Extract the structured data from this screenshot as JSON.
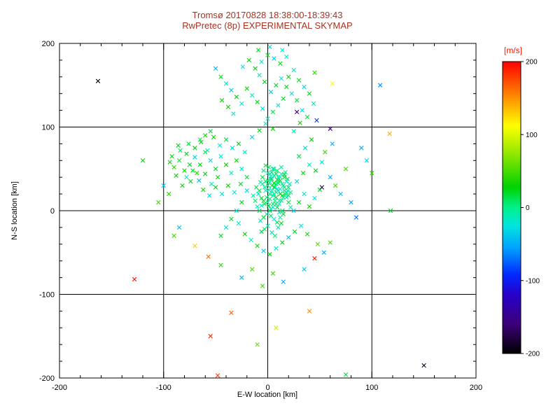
{
  "chart_data": {
    "type": "scatter",
    "title": "Tromsø 20170828 18:38:00-18:39:43",
    "subtitle": "RwPretec (8p) EXPERIMENTAL SKYMAP",
    "title_color": "#a63320",
    "xlabel": "E-W location [km]",
    "ylabel": "N-S location [km]",
    "axis_color": "#000000",
    "xlim": [
      -200,
      200
    ],
    "ylim": [
      -200,
      200
    ],
    "xticks": [
      -200,
      -100,
      0,
      100,
      200
    ],
    "yticks": [
      -200,
      -100,
      0,
      100,
      200
    ],
    "minor_tick_step": 20,
    "grid": true,
    "gridlines_x": [
      -100,
      0,
      100
    ],
    "gridlines_y": [
      -100,
      0,
      100
    ],
    "marker": "x",
    "colorbar": {
      "label": "[m/s]",
      "label_color": "#ff1400",
      "min": -200,
      "max": 200,
      "ticks": [
        200,
        100,
        0,
        -100,
        -200
      ],
      "stops": [
        [
          0.0,
          "#000000"
        ],
        [
          0.1,
          "#3c0078"
        ],
        [
          0.2,
          "#2800c8"
        ],
        [
          0.27,
          "#0028ff"
        ],
        [
          0.36,
          "#00a0ff"
        ],
        [
          0.44,
          "#00e6dc"
        ],
        [
          0.5,
          "#00f08c"
        ],
        [
          0.57,
          "#00d200"
        ],
        [
          0.68,
          "#8ce600"
        ],
        [
          0.78,
          "#ffff00"
        ],
        [
          0.87,
          "#ff9600"
        ],
        [
          1.0,
          "#ff0000"
        ]
      ]
    },
    "points": [
      [
        0,
        10,
        -8
      ],
      [
        2,
        14,
        5
      ],
      [
        -3,
        8,
        12
      ],
      [
        5,
        18,
        -12
      ],
      [
        8,
        22,
        3
      ],
      [
        -6,
        15,
        20
      ],
      [
        1,
        25,
        -18
      ],
      [
        4,
        30,
        8
      ],
      [
        -2,
        35,
        15
      ],
      [
        7,
        28,
        -5
      ],
      [
        10,
        33,
        10
      ],
      [
        12,
        26,
        -22
      ],
      [
        15,
        30,
        5
      ],
      [
        -8,
        24,
        18
      ],
      [
        -5,
        32,
        -10
      ],
      [
        3,
        38,
        12
      ],
      [
        6,
        42,
        -15
      ],
      [
        9,
        37,
        20
      ],
      [
        0,
        45,
        -8
      ],
      [
        -4,
        48,
        5
      ],
      [
        13,
        44,
        -12
      ],
      [
        16,
        40,
        15
      ],
      [
        18,
        35,
        -20
      ],
      [
        20,
        28,
        8
      ],
      [
        22,
        22,
        -5
      ],
      [
        14,
        18,
        25
      ],
      [
        11,
        12,
        -15
      ],
      [
        8,
        8,
        10
      ],
      [
        5,
        4,
        -25
      ],
      [
        2,
        0,
        15
      ],
      [
        -1,
        -4,
        -10
      ],
      [
        -4,
        -8,
        20
      ],
      [
        -7,
        -12,
        -15
      ],
      [
        3,
        -6,
        8
      ],
      [
        6,
        -10,
        -20
      ],
      [
        9,
        -14,
        12
      ],
      [
        12,
        -8,
        -5
      ],
      [
        15,
        -4,
        18
      ],
      [
        0,
        -18,
        -12
      ],
      [
        -3,
        -22,
        10
      ],
      [
        4,
        -26,
        -18
      ],
      [
        7,
        -30,
        5
      ],
      [
        -6,
        -25,
        15
      ],
      [
        10,
        -20,
        -8
      ],
      [
        13,
        -15,
        22
      ],
      [
        -10,
        5,
        -14
      ],
      [
        -12,
        12,
        8
      ],
      [
        -9,
        20,
        -20
      ],
      [
        -11,
        28,
        12
      ],
      [
        -14,
        18,
        -6
      ],
      [
        1,
        52,
        10
      ],
      [
        5,
        50,
        -14
      ],
      [
        9,
        48,
        6
      ],
      [
        13,
        52,
        -9
      ],
      [
        -2,
        54,
        14
      ],
      [
        17,
        46,
        -4
      ],
      [
        19,
        38,
        11
      ],
      [
        21,
        32,
        -16
      ],
      [
        16,
        24,
        7
      ],
      [
        18,
        16,
        -11
      ],
      [
        20,
        10,
        14
      ],
      [
        22,
        4,
        -7
      ],
      [
        14,
        0,
        9
      ],
      [
        11,
        -2,
        -13
      ],
      [
        2,
        20,
        4
      ],
      [
        4,
        24,
        -9
      ],
      [
        6,
        28,
        14
      ],
      [
        8,
        32,
        -4
      ],
      [
        10,
        36,
        9
      ],
      [
        12,
        40,
        -14
      ],
      [
        -1,
        16,
        6
      ],
      [
        -3,
        28,
        -11
      ],
      [
        -5,
        40,
        16
      ],
      [
        -7,
        34,
        -6
      ],
      [
        0,
        30,
        11
      ],
      [
        2,
        34,
        -16
      ],
      [
        4,
        38,
        6
      ],
      [
        6,
        20,
        -2
      ],
      [
        8,
        16,
        16
      ],
      [
        10,
        24,
        -12
      ],
      [
        1,
        6,
        19
      ],
      [
        3,
        2,
        -17
      ],
      [
        5,
        8,
        7
      ],
      [
        7,
        12,
        -3
      ],
      [
        9,
        4,
        13
      ],
      [
        11,
        8,
        -19
      ],
      [
        13,
        12,
        3
      ],
      [
        15,
        16,
        -8
      ],
      [
        17,
        20,
        13
      ],
      [
        19,
        24,
        -3
      ],
      [
        -8,
        0,
        8
      ],
      [
        -6,
        6,
        -13
      ],
      [
        -4,
        12,
        18
      ],
      [
        -2,
        24,
        -8
      ],
      [
        0,
        36,
        3
      ],
      [
        2,
        44,
        -18
      ],
      [
        4,
        46,
        8
      ],
      [
        6,
        50,
        -3
      ],
      [
        8,
        44,
        13
      ],
      [
        10,
        40,
        -8
      ],
      [
        12,
        36,
        18
      ],
      [
        14,
        32,
        -13
      ],
      [
        16,
        28,
        3
      ],
      [
        18,
        22,
        -18
      ],
      [
        20,
        18,
        8
      ],
      [
        12,
        20,
        24
      ],
      [
        9,
        26,
        -24
      ],
      [
        6,
        33,
        24
      ],
      [
        3,
        41,
        -21
      ],
      [
        16,
        43,
        21
      ],
      [
        -20,
        40,
        15
      ],
      [
        -25,
        50,
        -20
      ],
      [
        -30,
        60,
        25
      ],
      [
        -35,
        45,
        -15
      ],
      [
        -40,
        55,
        30
      ],
      [
        -45,
        65,
        -25
      ],
      [
        -50,
        50,
        20
      ],
      [
        -55,
        60,
        -30
      ],
      [
        -60,
        70,
        15
      ],
      [
        -65,
        55,
        25
      ],
      [
        -22,
        70,
        -18
      ],
      [
        -28,
        80,
        22
      ],
      [
        -34,
        75,
        -28
      ],
      [
        -40,
        85,
        18
      ],
      [
        -46,
        78,
        -22
      ],
      [
        -52,
        88,
        28
      ],
      [
        -58,
        72,
        -12
      ],
      [
        -64,
        82,
        32
      ],
      [
        -70,
        64,
        -35
      ],
      [
        -48,
        40,
        24
      ],
      [
        -54,
        32,
        -16
      ],
      [
        -60,
        44,
        28
      ],
      [
        -66,
        36,
        -40
      ],
      [
        -72,
        48,
        20
      ],
      [
        -78,
        40,
        -24
      ],
      [
        -62,
        25,
        35
      ],
      [
        -56,
        18,
        -30
      ],
      [
        -50,
        28,
        25
      ],
      [
        -44,
        20,
        -20
      ],
      [
        -38,
        30,
        30
      ],
      [
        -32,
        22,
        -25
      ],
      [
        -26,
        32,
        20
      ],
      [
        -20,
        24,
        -35
      ],
      [
        -25,
        10,
        25
      ],
      [
        -30,
        0,
        -18
      ],
      [
        -35,
        -10,
        22
      ],
      [
        -40,
        -20,
        -28
      ],
      [
        -45,
        -30,
        18
      ],
      [
        -28,
        -15,
        -22
      ],
      [
        -22,
        -28,
        28
      ],
      [
        -16,
        -35,
        -12
      ],
      [
        -10,
        -42,
        32
      ],
      [
        -4,
        -48,
        -35
      ],
      [
        2,
        -52,
        24
      ],
      [
        8,
        -45,
        -16
      ],
      [
        14,
        -38,
        28
      ],
      [
        20,
        -32,
        -40
      ],
      [
        26,
        -25,
        20
      ],
      [
        32,
        -18,
        -24
      ],
      [
        38,
        -28,
        35
      ],
      [
        25,
        0,
        -30
      ],
      [
        30,
        10,
        25
      ],
      [
        35,
        20,
        -20
      ],
      [
        40,
        5,
        30
      ],
      [
        45,
        15,
        -25
      ],
      [
        50,
        25,
        20
      ],
      [
        28,
        35,
        -35
      ],
      [
        34,
        45,
        25
      ],
      [
        40,
        55,
        -18
      ],
      [
        46,
        48,
        22
      ],
      [
        52,
        58,
        -28
      ],
      [
        30,
        65,
        18
      ],
      [
        36,
        75,
        -22
      ],
      [
        42,
        85,
        28
      ],
      [
        25,
        95,
        -12
      ],
      [
        31,
        105,
        32
      ],
      [
        -15,
        88,
        -35
      ],
      [
        -8,
        96,
        24
      ],
      [
        -2,
        104,
        -16
      ],
      [
        5,
        98,
        28
      ],
      [
        0,
        110,
        -20
      ],
      [
        5,
        118,
        15
      ],
      [
        10,
        126,
        -25
      ],
      [
        15,
        134,
        20
      ],
      [
        -5,
        122,
        -30
      ],
      [
        -10,
        130,
        25
      ],
      [
        -15,
        138,
        -15
      ],
      [
        -20,
        146,
        30
      ],
      [
        3,
        142,
        -35
      ],
      [
        8,
        150,
        18
      ],
      [
        13,
        158,
        -22
      ],
      [
        -3,
        154,
        28
      ],
      [
        -8,
        162,
        -12
      ],
      [
        18,
        148,
        22
      ],
      [
        23,
        140,
        -28
      ],
      [
        28,
        132,
        18
      ],
      [
        -25,
        128,
        -22
      ],
      [
        -30,
        136,
        28
      ],
      [
        -35,
        144,
        -40
      ],
      [
        20,
        160,
        24
      ],
      [
        25,
        168,
        -16
      ],
      [
        -12,
        170,
        28
      ],
      [
        -6,
        178,
        -24
      ],
      [
        0,
        186,
        20
      ],
      [
        6,
        182,
        -35
      ],
      [
        12,
        176,
        25
      ],
      [
        18,
        184,
        -20
      ],
      [
        -18,
        180,
        30
      ],
      [
        -24,
        172,
        -25
      ],
      [
        30,
        156,
        20
      ],
      [
        35,
        148,
        -30
      ],
      [
        40,
        140,
        25
      ],
      [
        -40,
        152,
        -18
      ],
      [
        -45,
        160,
        22
      ],
      [
        33,
        120,
        -28
      ],
      [
        38,
        112,
        18
      ],
      [
        -33,
        116,
        -22
      ],
      [
        -38,
        124,
        28
      ],
      [
        44,
        128,
        -12
      ],
      [
        -44,
        132,
        32
      ],
      [
        2,
        196,
        -30
      ],
      [
        -9,
        192,
        24
      ],
      [
        14,
        192,
        -18
      ],
      [
        45,
        165,
        40
      ],
      [
        -50,
        170,
        -45
      ],
      [
        -75,
        55,
        20
      ],
      [
        -80,
        48,
        35
      ],
      [
        -85,
        60,
        15
      ],
      [
        -90,
        52,
        40
      ],
      [
        -78,
        68,
        25
      ],
      [
        -84,
        72,
        10
      ],
      [
        -70,
        75,
        30
      ],
      [
        -76,
        80,
        18
      ],
      [
        -88,
        42,
        28
      ],
      [
        -68,
        45,
        38
      ],
      [
        -74,
        35,
        22
      ],
      [
        -82,
        30,
        32
      ],
      [
        -65,
        85,
        12
      ],
      [
        -92,
        65,
        26
      ],
      [
        -60,
        90,
        34
      ],
      [
        -55,
        95,
        16
      ],
      [
        -86,
        78,
        24
      ],
      [
        -94,
        58,
        30
      ],
      [
        60,
        40,
        -50
      ],
      [
        65,
        30,
        45
      ],
      [
        70,
        20,
        -40
      ],
      [
        75,
        50,
        50
      ],
      [
        80,
        10,
        -55
      ],
      [
        55,
        70,
        45
      ],
      [
        62,
        80,
        -45
      ],
      [
        48,
        -40,
        55
      ],
      [
        54,
        -50,
        -50
      ],
      [
        60,
        -38,
        48
      ],
      [
        -95,
        20,
        42
      ],
      [
        -100,
        30,
        -38
      ],
      [
        -105,
        10,
        45
      ],
      [
        -85,
        -20,
        -42
      ],
      [
        -90,
        -30,
        48
      ],
      [
        95,
        60,
        -35
      ],
      [
        100,
        45,
        42
      ],
      [
        90,
        75,
        -48
      ],
      [
        -15,
        -70,
        52
      ],
      [
        -25,
        -80,
        -45
      ],
      [
        5,
        -75,
        48
      ],
      [
        15,
        -85,
        -52
      ],
      [
        -5,
        -90,
        45
      ],
      [
        35,
        -70,
        -38
      ],
      [
        -45,
        -65,
        42
      ],
      [
        -163,
        155,
        -195
      ],
      [
        150,
        -185,
        -190
      ],
      [
        -128,
        -82,
        195
      ],
      [
        -55,
        -150,
        185
      ],
      [
        -48,
        -197,
        180
      ],
      [
        -35,
        -122,
        170
      ],
      [
        40,
        -120,
        150
      ],
      [
        117,
        92,
        140
      ],
      [
        118,
        0,
        20
      ],
      [
        75,
        -196,
        15
      ],
      [
        52,
        28,
        -175
      ],
      [
        28,
        118,
        -160
      ],
      [
        60,
        98,
        -150
      ],
      [
        45,
        -57,
        190
      ],
      [
        -57,
        -55,
        160
      ],
      [
        -70,
        -42,
        130
      ],
      [
        108,
        150,
        -60
      ],
      [
        62,
        152,
        110
      ],
      [
        -120,
        60,
        30
      ],
      [
        85,
        -8,
        -70
      ],
      [
        47,
        108,
        -90
      ],
      [
        8,
        -140,
        90
      ],
      [
        -10,
        -160,
        60
      ]
    ]
  }
}
